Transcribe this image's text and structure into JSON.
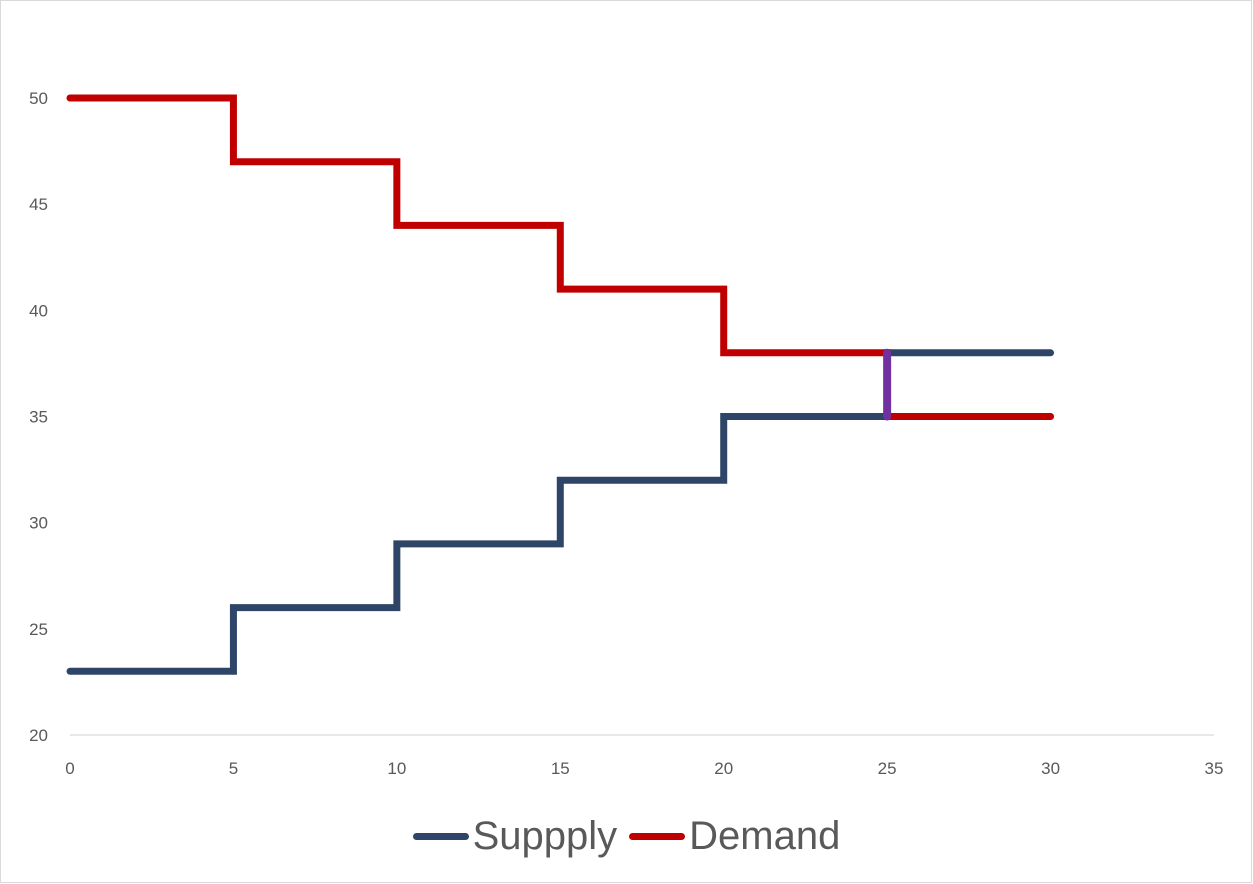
{
  "chart_data": {
    "type": "line",
    "title": "",
    "xlabel": "",
    "ylabel": "",
    "xlim": [
      0,
      35
    ],
    "ylim": [
      20,
      50
    ],
    "x_ticks": [
      0,
      5,
      10,
      15,
      20,
      25,
      30,
      35
    ],
    "y_ticks": [
      20,
      25,
      30,
      35,
      40,
      45,
      50
    ],
    "grid": false,
    "legend_position": "bottom",
    "series": [
      {
        "name": "Suppply",
        "color": "#2e4567",
        "step": true,
        "x": [
          0,
          5,
          5,
          10,
          10,
          15,
          15,
          20,
          20,
          25,
          25,
          30
        ],
        "y": [
          23,
          23,
          26,
          26,
          29,
          29,
          32,
          32,
          35,
          35,
          38,
          38
        ]
      },
      {
        "name": "Demand",
        "color": "#c00000",
        "step": true,
        "x": [
          0,
          5,
          5,
          10,
          10,
          15,
          15,
          20,
          20,
          25,
          25,
          30
        ],
        "y": [
          50,
          50,
          47,
          47,
          44,
          44,
          41,
          41,
          38,
          38,
          35,
          35
        ]
      }
    ],
    "annotations": [
      {
        "type": "segment",
        "color": "#7030a0",
        "x": [
          25,
          25
        ],
        "y": [
          35,
          38
        ]
      }
    ]
  }
}
